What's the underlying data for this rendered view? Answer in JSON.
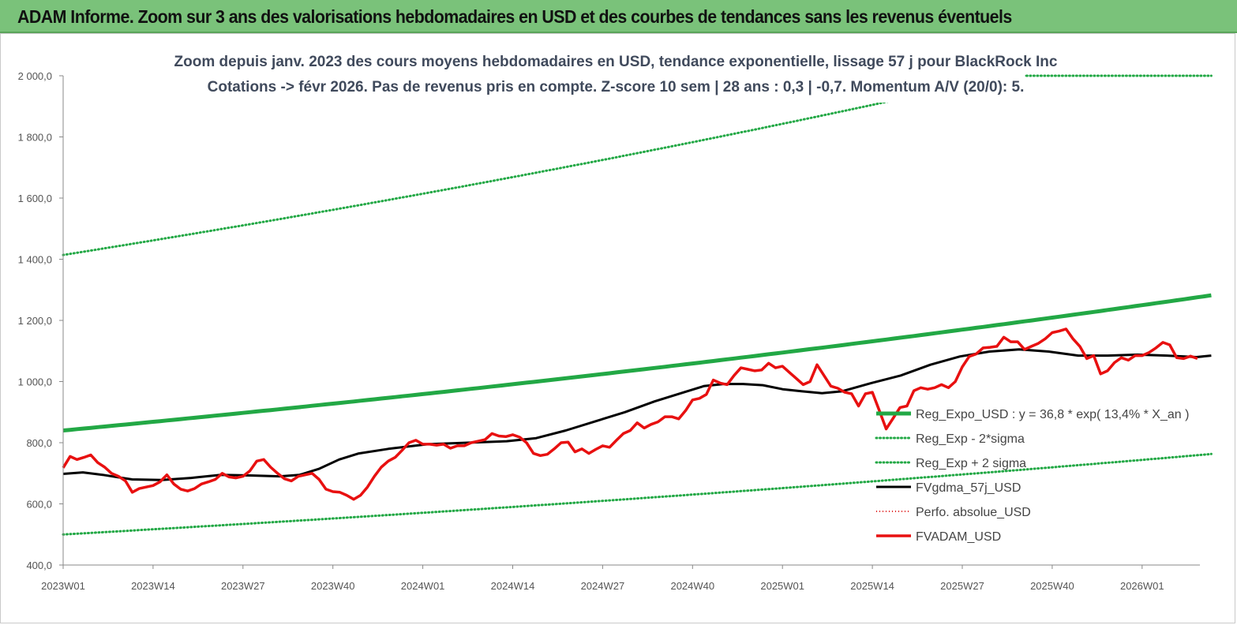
{
  "banner": {
    "title": "ADAM Informe. Zoom sur 3 ans des valorisations hebdomadaires en USD et des courbes de tendances sans les revenus éventuels"
  },
  "chart_data": {
    "type": "line",
    "title_line1": "Zoom depuis janv. 2023 des cours moyens hebdomadaires en USD, tendance exponentielle, lissage 57 j pour BlackRock Inc",
    "title_line2": "Cotations -> févr 2026.  Pas de revenus pris en compte. Z-score 10 sem  | 28 ans : 0,3 | -0,7. Momentum A/V (20/0): 5.",
    "x_tick_labels": [
      "2023W01",
      "2023W14",
      "2023W27",
      "2023W40",
      "2024W01",
      "2024W14",
      "2024W27",
      "2024W40",
      "2025W01",
      "2025W14",
      "2025W27",
      "2025W40",
      "2026W01"
    ],
    "y_tick_labels": [
      "400,0",
      "600,0",
      "800,0",
      "1 000,0",
      "1 200,0",
      "1 400,0",
      "1 600,0",
      "1 800,0",
      "2 000,0"
    ],
    "ylim": [
      400,
      2000
    ],
    "x_weeks": 166,
    "grid": false,
    "legend_position": "right",
    "colors": {
      "trend": "#22a845",
      "sigma": "#22a845",
      "smooth": "#000000",
      "perf": "#e02020",
      "price": "#e81010"
    },
    "series": [
      {
        "name": "Reg_Expo_USD : y = 36,8 * exp( 13,4% *  X_an )",
        "style": "trend",
        "start": 840,
        "end": 1282
      },
      {
        "name": "Reg_Exp - 2*sigma",
        "style": "sigma",
        "start": 500,
        "end": 763
      },
      {
        "name": "Reg_Exp + 2 sigma",
        "style": "sigma",
        "start": 1414,
        "end": 2158,
        "clip_max": 2000
      },
      {
        "name": "FVgdma_57j_USD",
        "style": "smooth",
        "points": [
          [
            0,
            698
          ],
          [
            4,
            703
          ],
          [
            8,
            695
          ],
          [
            12,
            685
          ],
          [
            14,
            680
          ],
          [
            20,
            678
          ],
          [
            26,
            685
          ],
          [
            32,
            695
          ],
          [
            38,
            693
          ],
          [
            44,
            690
          ],
          [
            48,
            695
          ],
          [
            52,
            715
          ],
          [
            56,
            745
          ],
          [
            60,
            765
          ],
          [
            66,
            780
          ],
          [
            74,
            795
          ],
          [
            82,
            800
          ],
          [
            90,
            805
          ],
          [
            96,
            815
          ],
          [
            102,
            840
          ],
          [
            108,
            870
          ],
          [
            114,
            900
          ],
          [
            120,
            935
          ],
          [
            126,
            965
          ],
          [
            130,
            985
          ],
          [
            134,
            992
          ],
          [
            138,
            992
          ],
          [
            142,
            988
          ],
          [
            146,
            975
          ],
          [
            150,
            968
          ],
          [
            154,
            962
          ],
          [
            158,
            968
          ],
          [
            164,
            995
          ],
          [
            170,
            1020
          ],
          [
            176,
            1055
          ],
          [
            182,
            1082
          ],
          [
            188,
            1098
          ],
          [
            194,
            1105
          ],
          [
            200,
            1098
          ],
          [
            206,
            1085
          ],
          [
            212,
            1085
          ],
          [
            218,
            1088
          ],
          [
            224,
            1085
          ],
          [
            230,
            1080
          ],
          [
            233,
            1085
          ]
        ]
      },
      {
        "name": "Perfo. absolue_USD",
        "style": "perf",
        "points": []
      },
      {
        "name": "FVADAM_USD",
        "style": "price",
        "points": [
          [
            0,
            718
          ],
          [
            1,
            755
          ],
          [
            2,
            745
          ],
          [
            3,
            752
          ],
          [
            4,
            760
          ],
          [
            5,
            735
          ],
          [
            6,
            720
          ],
          [
            7,
            700
          ],
          [
            8,
            690
          ],
          [
            9,
            675
          ],
          [
            10,
            638
          ],
          [
            11,
            650
          ],
          [
            12,
            655
          ],
          [
            13,
            660
          ],
          [
            14,
            672
          ],
          [
            15,
            695
          ],
          [
            16,
            665
          ],
          [
            17,
            648
          ],
          [
            18,
            642
          ],
          [
            19,
            650
          ],
          [
            20,
            665
          ],
          [
            21,
            672
          ],
          [
            22,
            680
          ],
          [
            23,
            700
          ],
          [
            24,
            688
          ],
          [
            25,
            685
          ],
          [
            26,
            690
          ],
          [
            27,
            708
          ],
          [
            28,
            740
          ],
          [
            29,
            745
          ],
          [
            30,
            720
          ],
          [
            31,
            700
          ],
          [
            32,
            682
          ],
          [
            33,
            675
          ],
          [
            34,
            690
          ],
          [
            35,
            695
          ],
          [
            36,
            700
          ],
          [
            37,
            680
          ],
          [
            38,
            648
          ],
          [
            39,
            640
          ],
          [
            40,
            638
          ],
          [
            41,
            628
          ],
          [
            42,
            615
          ],
          [
            43,
            628
          ],
          [
            44,
            655
          ],
          [
            45,
            690
          ],
          [
            46,
            720
          ],
          [
            47,
            740
          ],
          [
            48,
            752
          ],
          [
            49,
            775
          ],
          [
            50,
            800
          ],
          [
            51,
            808
          ],
          [
            52,
            795
          ],
          [
            53,
            795
          ],
          [
            54,
            792
          ],
          [
            55,
            795
          ],
          [
            56,
            782
          ],
          [
            57,
            790
          ],
          [
            58,
            790
          ],
          [
            59,
            800
          ],
          [
            60,
            805
          ],
          [
            61,
            810
          ],
          [
            62,
            830
          ],
          [
            63,
            822
          ],
          [
            64,
            820
          ],
          [
            65,
            826
          ],
          [
            66,
            818
          ],
          [
            67,
            800
          ],
          [
            68,
            765
          ],
          [
            69,
            758
          ],
          [
            70,
            762
          ],
          [
            71,
            780
          ],
          [
            72,
            800
          ],
          [
            73,
            802
          ],
          [
            74,
            770
          ],
          [
            75,
            780
          ],
          [
            76,
            765
          ],
          [
            77,
            778
          ],
          [
            78,
            790
          ],
          [
            79,
            785
          ],
          [
            80,
            808
          ],
          [
            81,
            830
          ],
          [
            82,
            840
          ],
          [
            83,
            865
          ],
          [
            84,
            848
          ],
          [
            85,
            860
          ],
          [
            86,
            868
          ],
          [
            87,
            885
          ],
          [
            88,
            885
          ],
          [
            89,
            878
          ],
          [
            90,
            905
          ],
          [
            91,
            940
          ],
          [
            92,
            945
          ],
          [
            93,
            958
          ],
          [
            94,
            1005
          ],
          [
            95,
            995
          ],
          [
            96,
            990
          ],
          [
            97,
            1020
          ],
          [
            98,
            1045
          ],
          [
            99,
            1040
          ],
          [
            100,
            1035
          ],
          [
            101,
            1038
          ],
          [
            102,
            1060
          ],
          [
            103,
            1045
          ],
          [
            104,
            1050
          ],
          [
            105,
            1030
          ],
          [
            106,
            1010
          ],
          [
            107,
            990
          ],
          [
            108,
            1000
          ],
          [
            109,
            1055
          ],
          [
            110,
            1020
          ],
          [
            111,
            985
          ],
          [
            112,
            978
          ],
          [
            113,
            965
          ],
          [
            114,
            960
          ],
          [
            115,
            920
          ],
          [
            116,
            960
          ],
          [
            117,
            965
          ],
          [
            118,
            905
          ],
          [
            119,
            845
          ],
          [
            120,
            880
          ],
          [
            121,
            915
          ],
          [
            122,
            920
          ],
          [
            123,
            970
          ],
          [
            124,
            980
          ],
          [
            125,
            975
          ],
          [
            126,
            980
          ],
          [
            127,
            990
          ],
          [
            128,
            980
          ],
          [
            129,
            1000
          ],
          [
            130,
            1048
          ],
          [
            131,
            1082
          ],
          [
            132,
            1090
          ],
          [
            133,
            1110
          ],
          [
            134,
            1112
          ],
          [
            135,
            1115
          ],
          [
            136,
            1145
          ],
          [
            137,
            1130
          ],
          [
            138,
            1130
          ],
          [
            139,
            1105
          ],
          [
            140,
            1115
          ],
          [
            141,
            1125
          ],
          [
            142,
            1140
          ],
          [
            143,
            1160
          ],
          [
            144,
            1165
          ],
          [
            145,
            1172
          ],
          [
            146,
            1140
          ],
          [
            147,
            1115
          ],
          [
            148,
            1075
          ],
          [
            149,
            1085
          ],
          [
            150,
            1025
          ],
          [
            151,
            1035
          ],
          [
            152,
            1062
          ],
          [
            153,
            1078
          ],
          [
            154,
            1070
          ],
          [
            155,
            1085
          ],
          [
            156,
            1085
          ],
          [
            157,
            1095
          ],
          [
            158,
            1110
          ],
          [
            159,
            1128
          ],
          [
            160,
            1120
          ],
          [
            161,
            1078
          ],
          [
            162,
            1075
          ],
          [
            163,
            1083
          ],
          [
            164,
            1075
          ]
        ]
      }
    ]
  }
}
